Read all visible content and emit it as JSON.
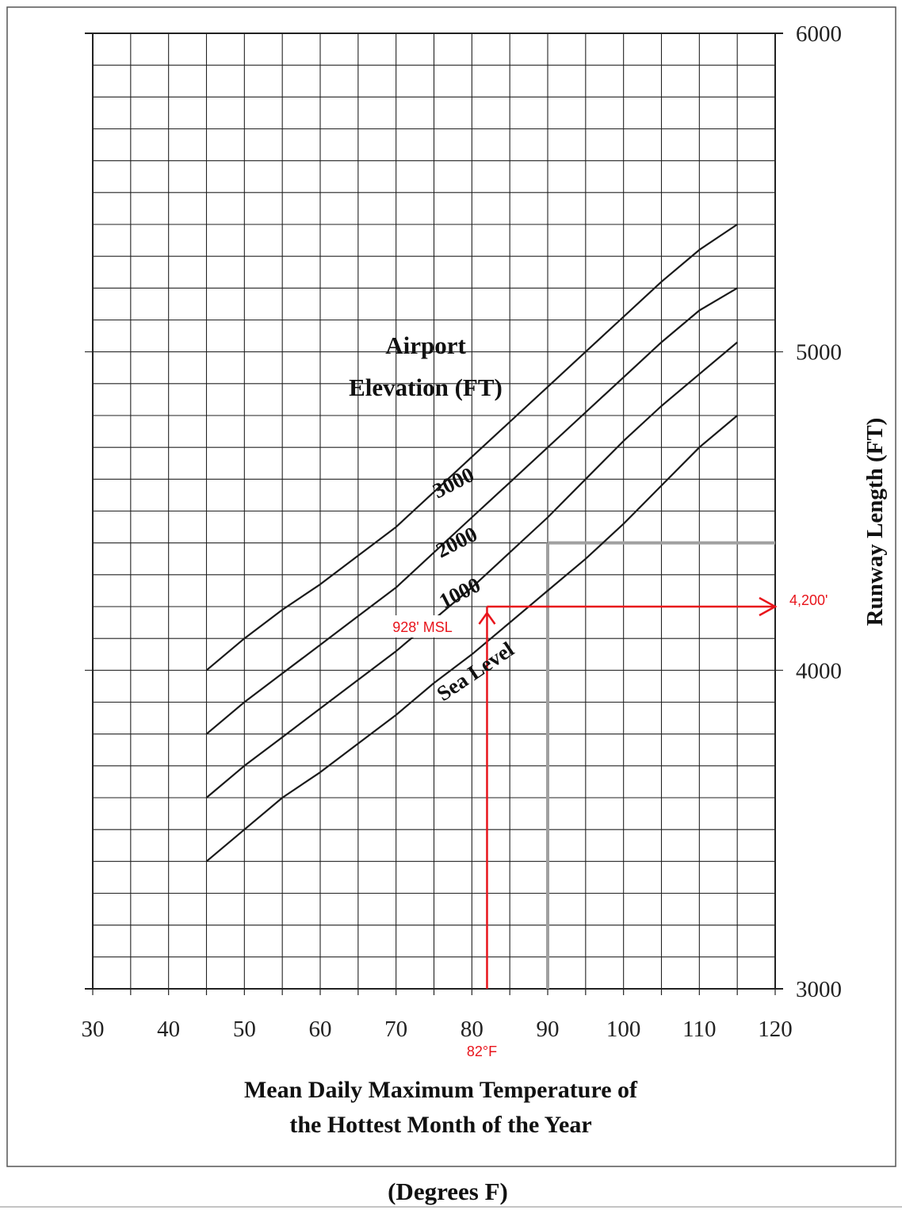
{
  "chart_data": {
    "type": "line",
    "title": "",
    "xlabel": [
      "Mean Daily Maximum Temperature of",
      "the Hottest Month of the Year"
    ],
    "xlabel_units": "(Degrees F)",
    "ylabel": "Runway Length (FT)",
    "legend_title": [
      "Airport",
      "Elevation (FT)"
    ],
    "xlim": [
      30,
      120
    ],
    "ylim": [
      3000,
      6000
    ],
    "x_ticks": [
      30,
      40,
      50,
      60,
      70,
      80,
      90,
      100,
      110,
      120
    ],
    "y_ticks": [
      3000,
      4000,
      5000,
      6000
    ],
    "y_axis_position": "right",
    "grid": true,
    "grid_x_step": 5,
    "grid_y_step": 100,
    "series": [
      {
        "name": "Sea Level",
        "x": [
          45,
          50,
          55,
          60,
          65,
          70,
          75,
          80,
          85,
          90,
          95,
          100,
          105,
          110,
          115
        ],
        "values": [
          3400,
          3500,
          3600,
          3680,
          3770,
          3860,
          3960,
          4050,
          4150,
          4250,
          4350,
          4460,
          4580,
          4700,
          4800
        ]
      },
      {
        "name": "1000",
        "x": [
          45,
          50,
          55,
          60,
          65,
          70,
          75,
          80,
          85,
          90,
          95,
          100,
          105,
          110,
          115
        ],
        "values": [
          3600,
          3700,
          3790,
          3880,
          3970,
          4060,
          4160,
          4260,
          4370,
          4480,
          4600,
          4720,
          4830,
          4930,
          5030
        ]
      },
      {
        "name": "2000",
        "x": [
          45,
          50,
          55,
          60,
          65,
          70,
          75,
          80,
          85,
          90,
          95,
          100,
          105,
          110,
          115
        ],
        "values": [
          3800,
          3900,
          3990,
          4080,
          4170,
          4260,
          4370,
          4480,
          4590,
          4700,
          4810,
          4920,
          5030,
          5130,
          5200
        ]
      },
      {
        "name": "3000",
        "x": [
          45,
          50,
          55,
          60,
          65,
          70,
          75,
          80,
          85,
          90,
          95,
          100,
          105,
          110,
          115
        ],
        "values": [
          4000,
          4100,
          4190,
          4270,
          4360,
          4450,
          4560,
          4670,
          4780,
          4890,
          5000,
          5110,
          5220,
          5320,
          5400
        ]
      }
    ],
    "reference_lines": {
      "gray": {
        "x": 90,
        "y": 4400
      },
      "red": {
        "x": 82,
        "y": 4200
      }
    },
    "annotations": [
      {
        "text": "928' MSL",
        "color": "#e8141b"
      },
      {
        "text": "4,200'",
        "color": "#e8141b"
      },
      {
        "text": "82°F",
        "color": "#e8141b"
      }
    ]
  },
  "colors": {
    "curve": "#1a1a1a",
    "grid": "#222222",
    "ref_gray": "#a0a0a0",
    "annotation": "#e8141b"
  }
}
